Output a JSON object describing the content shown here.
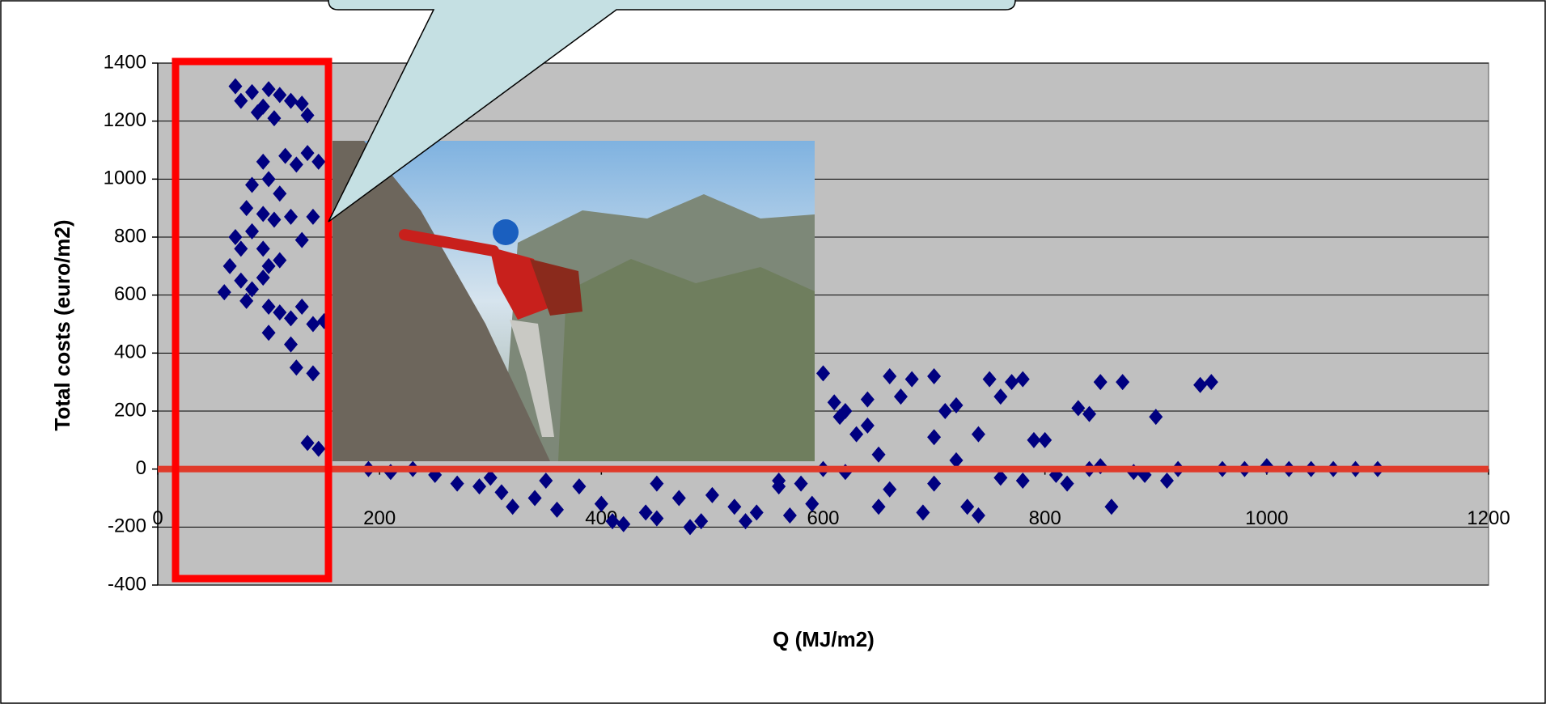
{
  "chart_data": {
    "type": "scatter",
    "xlabel": "Q (MJ/m2)",
    "ylabel": "Total costs (euro/m2)",
    "xlim": [
      0,
      1200
    ],
    "xticks": [
      0,
      200,
      400,
      600,
      800,
      1000,
      1200
    ],
    "ylim": [
      -400,
      1400
    ],
    "yticks": [
      -400,
      -200,
      0,
      200,
      400,
      600,
      800,
      1000,
      1200,
      1400
    ],
    "grid": true,
    "marker": "diamond",
    "series": [
      {
        "color": "#000080",
        "x": [
          70,
          75,
          85,
          95,
          100,
          110,
          120,
          130,
          135,
          90,
          105,
          95,
          115,
          125,
          135,
          145,
          85,
          100,
          110,
          80,
          95,
          105,
          120,
          140,
          130,
          70,
          75,
          85,
          95,
          100,
          110,
          65,
          75,
          85,
          95,
          60,
          80,
          100,
          110,
          120,
          130,
          140,
          100,
          120,
          125,
          140,
          135,
          145,
          150,
          190,
          210,
          230,
          250,
          270,
          290,
          310,
          320,
          340,
          360,
          380,
          400,
          410,
          420,
          440,
          450,
          470,
          480,
          490,
          500,
          520,
          530,
          540,
          560,
          570,
          590,
          600,
          610,
          615,
          620,
          630,
          640,
          650,
          660,
          670,
          680,
          690,
          700,
          710,
          720,
          730,
          740,
          750,
          760,
          770,
          780,
          790,
          800,
          820,
          830,
          840,
          850,
          860,
          870,
          880,
          900,
          910,
          920,
          940,
          950,
          960,
          980,
          1000,
          1020,
          1040,
          1060,
          1080,
          1100,
          620,
          700,
          760,
          810,
          850,
          890,
          650,
          720,
          560,
          600,
          450,
          350,
          300,
          580,
          660,
          780,
          840,
          740,
          700,
          640
        ],
        "values": [
          1320,
          1270,
          1300,
          1250,
          1310,
          1290,
          1270,
          1260,
          1220,
          1230,
          1210,
          1060,
          1080,
          1050,
          1090,
          1060,
          980,
          1000,
          950,
          900,
          880,
          860,
          870,
          870,
          790,
          800,
          760,
          820,
          760,
          700,
          720,
          700,
          650,
          620,
          660,
          610,
          580,
          560,
          540,
          520,
          560,
          500,
          470,
          430,
          350,
          330,
          90,
          70,
          510,
          0,
          -10,
          0,
          -20,
          -50,
          -60,
          -80,
          -130,
          -100,
          -140,
          -60,
          -120,
          -180,
          -190,
          -150,
          -170,
          -100,
          -200,
          -180,
          -90,
          -130,
          -180,
          -150,
          -60,
          -160,
          -120,
          330,
          230,
          180,
          200,
          120,
          240,
          -130,
          320,
          250,
          310,
          -150,
          320,
          200,
          220,
          -130,
          -160,
          310,
          250,
          300,
          310,
          100,
          100,
          -50,
          210,
          190,
          300,
          -130,
          300,
          -10,
          180,
          -40,
          0,
          290,
          300,
          0,
          0,
          10,
          0,
          0,
          0,
          0,
          0,
          -10,
          -50,
          -30,
          -20,
          10,
          -20,
          50,
          30,
          -40,
          0,
          -50,
          -40,
          -30,
          -50,
          -70,
          -40,
          0,
          120,
          110,
          150
        ]
      }
    ]
  }
}
